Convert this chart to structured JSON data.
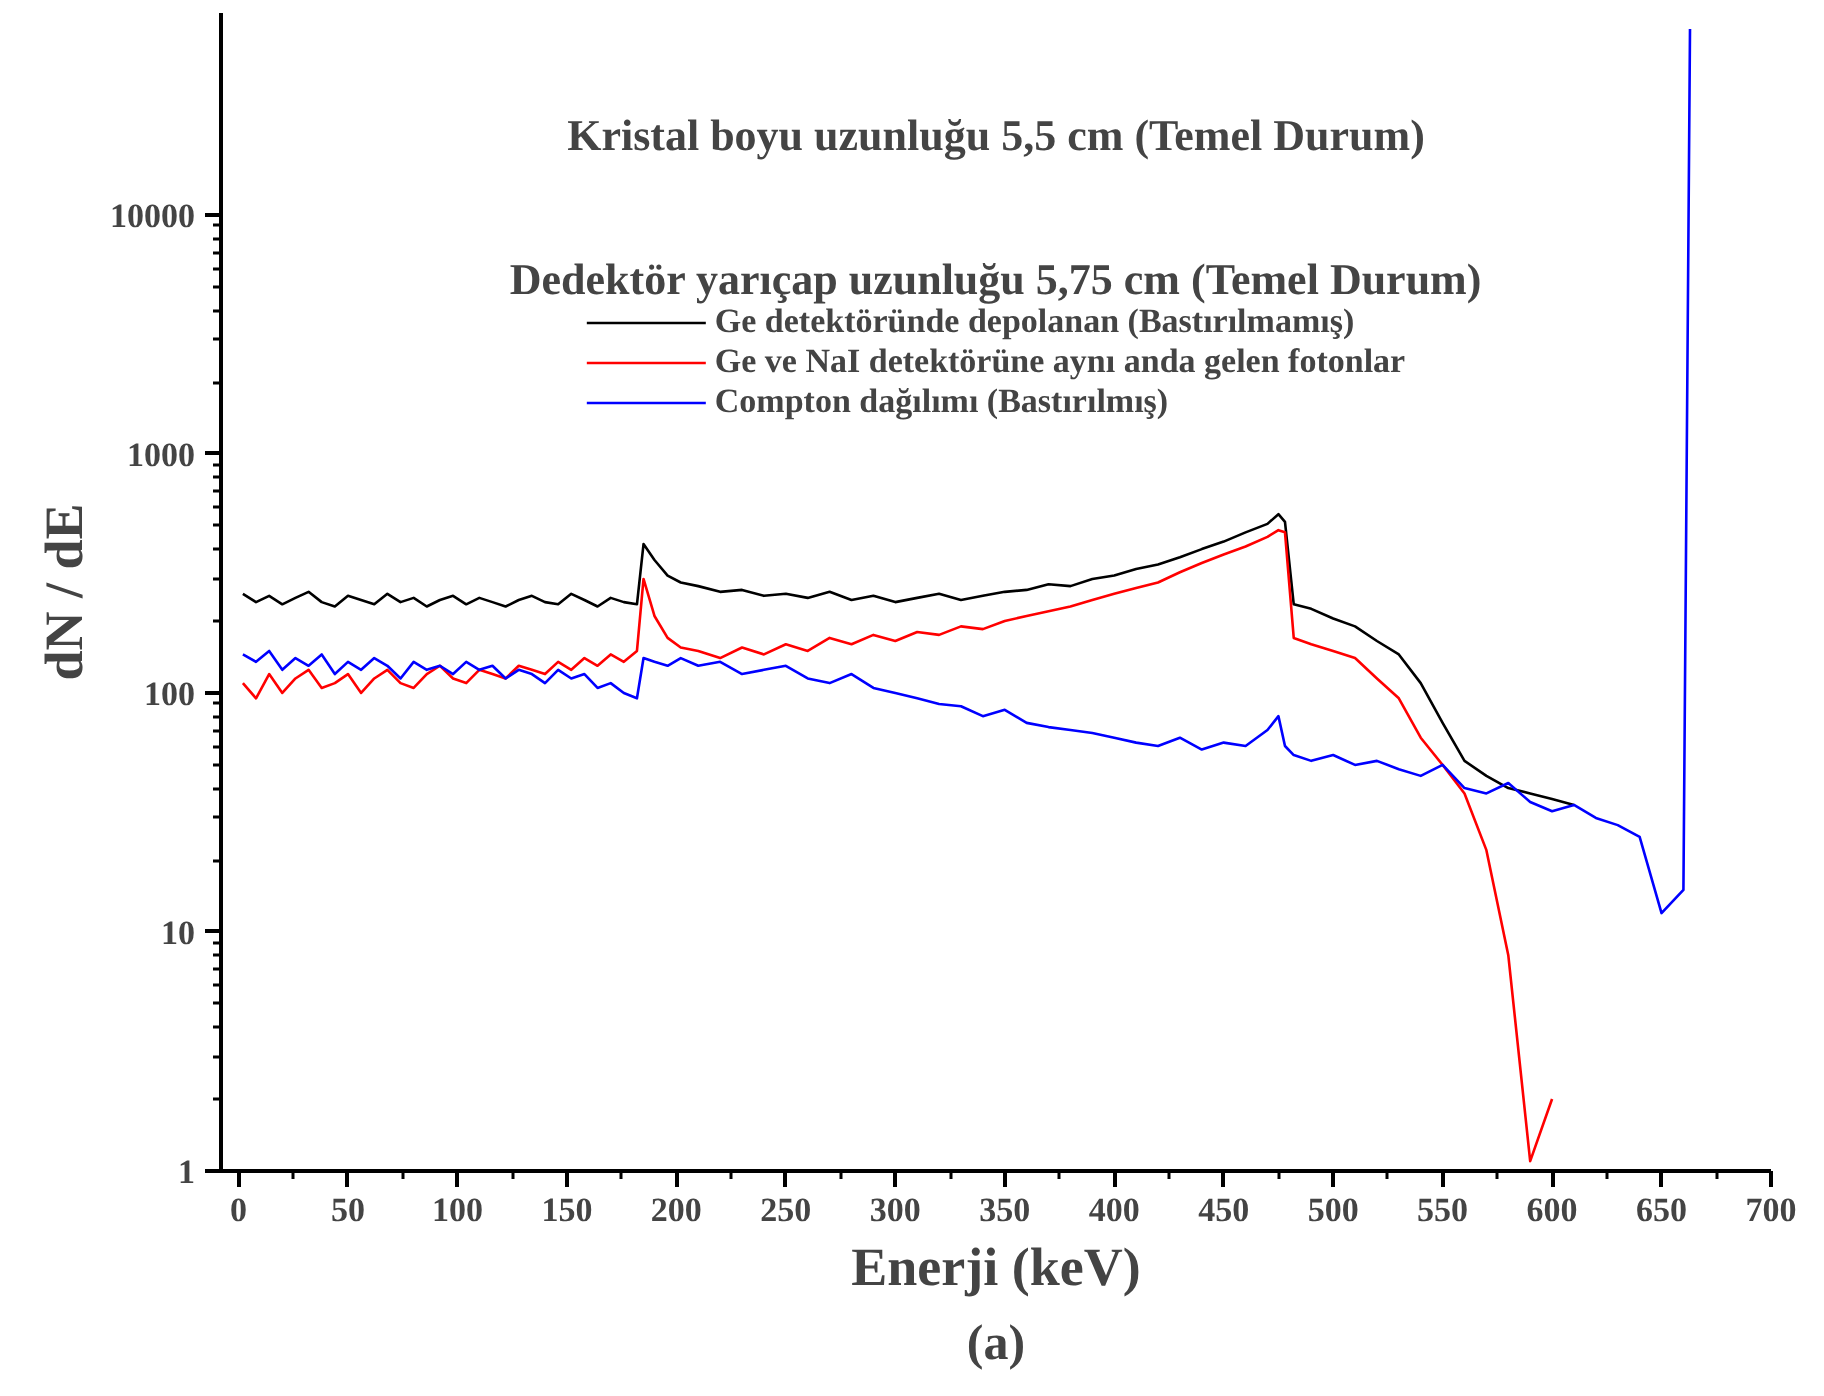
{
  "chart_data": {
    "type": "line",
    "xlabel": "Enerji (keV)",
    "ylabel": "dN / dE",
    "annotations": [
      "Kristal boyu uzunluğu 5,5 cm (Temel Durum)",
      "Dedektör yarıçap uzunluğu 5,75 cm (Temel Durum)",
      "(a)"
    ],
    "x": [
      2,
      8,
      14,
      20,
      26,
      32,
      38,
      44,
      50,
      56,
      62,
      68,
      74,
      80,
      86,
      92,
      98,
      104,
      110,
      116,
      122,
      128,
      134,
      140,
      146,
      152,
      158,
      164,
      170,
      176,
      182,
      185,
      190,
      196,
      202,
      210,
      220,
      230,
      240,
      250,
      260,
      270,
      280,
      290,
      300,
      310,
      320,
      330,
      340,
      350,
      360,
      370,
      380,
      390,
      400,
      410,
      420,
      430,
      440,
      450,
      460,
      470,
      475,
      478,
      482,
      490,
      500,
      510,
      520,
      530,
      540,
      550,
      560,
      570,
      580,
      590,
      600,
      610,
      620,
      630,
      640,
      650,
      660,
      663
    ],
    "series": [
      {
        "name": "Ge detektöründe depolanan (Bastırılmamış)",
        "color": "#000000",
        "values": [
          260,
          240,
          255,
          235,
          250,
          265,
          240,
          230,
          255,
          245,
          235,
          260,
          240,
          250,
          230,
          245,
          255,
          235,
          250,
          240,
          230,
          245,
          255,
          240,
          235,
          260,
          245,
          230,
          250,
          240,
          235,
          420,
          360,
          310,
          290,
          280,
          265,
          270,
          255,
          260,
          250,
          265,
          245,
          255,
          240,
          250,
          260,
          245,
          255,
          265,
          270,
          285,
          280,
          300,
          310,
          330,
          345,
          370,
          400,
          430,
          470,
          510,
          560,
          520,
          235,
          225,
          205,
          190,
          165,
          145,
          110,
          75,
          52,
          45,
          40,
          38,
          36,
          34,
          null,
          null,
          null,
          null,
          null,
          null
        ]
      },
      {
        "name": "Ge ve NaI detektörüne aynı anda gelen fotonlar",
        "color": "#ff0000",
        "values": [
          110,
          95,
          120,
          100,
          115,
          125,
          105,
          110,
          120,
          100,
          115,
          125,
          110,
          105,
          120,
          130,
          115,
          110,
          125,
          120,
          115,
          130,
          125,
          120,
          135,
          125,
          140,
          130,
          145,
          135,
          150,
          300,
          210,
          170,
          155,
          150,
          140,
          155,
          145,
          160,
          150,
          170,
          160,
          175,
          165,
          180,
          175,
          190,
          185,
          200,
          210,
          220,
          230,
          245,
          260,
          275,
          290,
          320,
          350,
          380,
          410,
          450,
          480,
          470,
          170,
          160,
          150,
          140,
          115,
          95,
          65,
          50,
          38,
          22,
          8,
          1.1,
          2,
          null,
          null,
          null,
          null,
          null,
          null,
          null
        ]
      },
      {
        "name": "Compton dağılımı (Bastırılmış)",
        "color": "#0000ff",
        "values": [
          145,
          135,
          150,
          125,
          140,
          130,
          145,
          120,
          135,
          125,
          140,
          130,
          115,
          135,
          125,
          130,
          120,
          135,
          125,
          130,
          115,
          125,
          120,
          110,
          125,
          115,
          120,
          105,
          110,
          100,
          95,
          140,
          135,
          130,
          140,
          130,
          135,
          120,
          125,
          130,
          115,
          110,
          120,
          105,
          100,
          95,
          90,
          88,
          80,
          85,
          75,
          72,
          70,
          68,
          65,
          62,
          60,
          65,
          58,
          62,
          60,
          70,
          80,
          60,
          55,
          52,
          55,
          50,
          52,
          48,
          45,
          50,
          40,
          38,
          42,
          35,
          32,
          34,
          30,
          28,
          25,
          12,
          15,
          60000
        ]
      }
    ],
    "log": "y",
    "xlim": [
      -8,
      700
    ],
    "ylim": [
      1,
      70000
    ],
    "xticks": [
      0,
      50,
      100,
      150,
      200,
      250,
      300,
      350,
      400,
      450,
      500,
      550,
      600,
      650,
      700
    ],
    "yticks": [
      1,
      10,
      100,
      1000,
      10000
    ],
    "grid": false,
    "legend": "top",
    "line_style": "solid",
    "marker": "none"
  }
}
